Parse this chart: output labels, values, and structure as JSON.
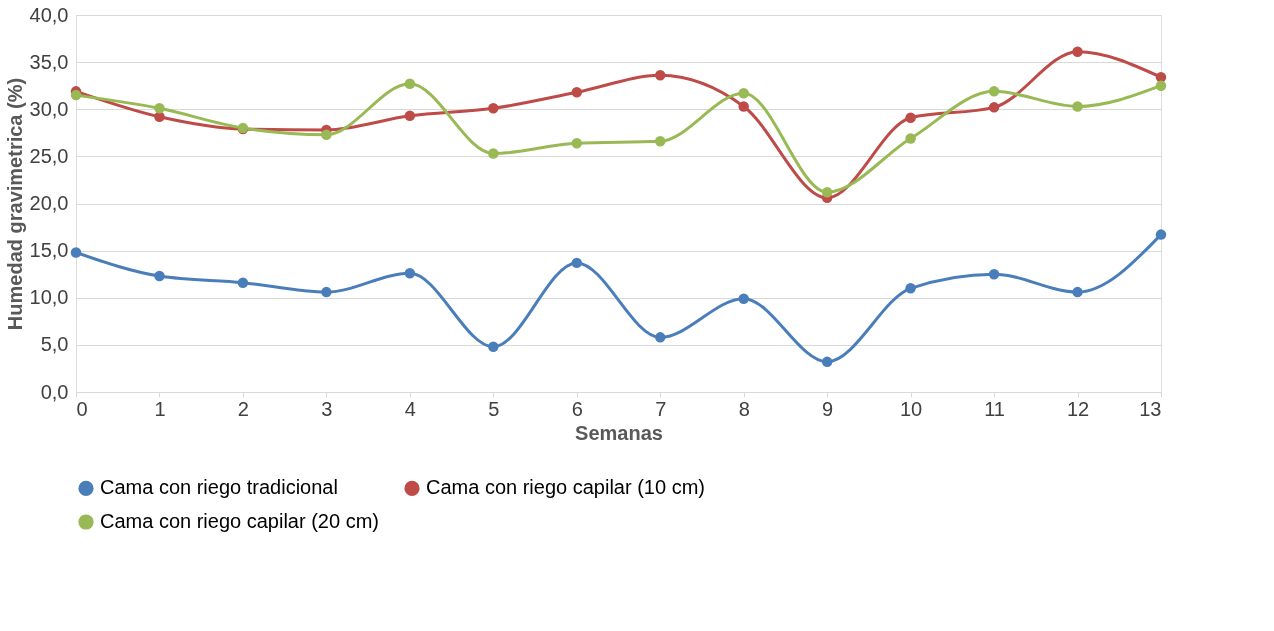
{
  "chart_data": {
    "type": "line",
    "xlabel": "Semanas",
    "ylabel": "Humedad gravimetrica (%)",
    "x": [
      0,
      1,
      2,
      3,
      4,
      5,
      6,
      7,
      8,
      9,
      10,
      11,
      12,
      13
    ],
    "xlim": [
      0,
      13
    ],
    "xticks": [
      0,
      1,
      2,
      3,
      4,
      5,
      6,
      7,
      8,
      9,
      10,
      11,
      12,
      13
    ],
    "ylim": [
      0,
      40
    ],
    "yticks": [
      {
        "value": 0,
        "label": "0,0"
      },
      {
        "value": 5,
        "label": "5,0"
      },
      {
        "value": 10,
        "label": "10,0"
      },
      {
        "value": 15,
        "label": "15,0"
      },
      {
        "value": 20,
        "label": "20,0"
      },
      {
        "value": 25,
        "label": "25,0"
      },
      {
        "value": 30,
        "label": "30,0"
      },
      {
        "value": 35,
        "label": "35,0"
      },
      {
        "value": 40,
        "label": "40,0"
      }
    ],
    "grid": "y",
    "legend": "bottom",
    "marker": "circle",
    "line_style": "solid",
    "series": [
      {
        "name": "Cama con riego tradicional",
        "color": "#4a7ebb",
        "values": [
          14.8,
          12.3,
          11.6,
          10.6,
          12.6,
          4.8,
          13.7,
          5.8,
          9.9,
          3.2,
          11.0,
          12.5,
          10.6,
          16.7
        ]
      },
      {
        "name": "Cama con riego capilar (10 cm)",
        "color": "#be4b48",
        "values": [
          31.9,
          29.2,
          27.9,
          27.8,
          29.3,
          30.1,
          31.8,
          33.6,
          30.3,
          20.6,
          29.1,
          30.2,
          36.1,
          33.4
        ]
      },
      {
        "name": "Cama con riego capilar (20 cm)",
        "color": "#98b954",
        "values": [
          31.5,
          30.1,
          28.0,
          27.3,
          32.7,
          25.3,
          26.4,
          26.6,
          31.7,
          21.2,
          26.9,
          31.9,
          30.3,
          32.5
        ]
      }
    ]
  }
}
